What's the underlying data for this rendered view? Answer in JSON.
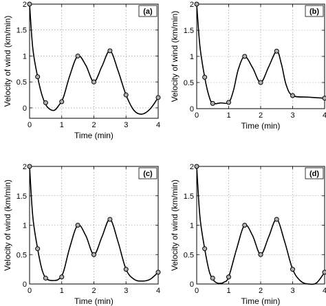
{
  "chart_data": [
    {
      "type": "line",
      "panel_label": "(a)",
      "xlabel": "Time (min)",
      "ylabel": "Velocity of wind (km/min)",
      "xlim": [
        0,
        4
      ],
      "ylim": [
        -0.2,
        2
      ],
      "grid": true,
      "xticks": [
        0,
        1,
        2,
        3,
        4
      ],
      "xtick_labels": [
        "0",
        "1",
        "2",
        "3",
        "4"
      ],
      "yticks": [
        0,
        0.5,
        1,
        1.5,
        2
      ],
      "ytick_labels": [
        "0",
        "0.5",
        "1",
        "1.5",
        "2"
      ],
      "points": {
        "x": [
          0,
          0.25,
          0.5,
          1,
          1.5,
          2,
          2.5,
          3,
          4
        ],
        "y": [
          2,
          0.6,
          0.1,
          0.12,
          1,
          0.5,
          1.1,
          0.25,
          0.2
        ]
      },
      "curve": {
        "x": [
          0,
          0.1,
          0.25,
          0.4,
          0.55,
          0.75,
          0.9,
          1.05,
          1.25,
          1.5,
          1.75,
          2,
          2.25,
          2.5,
          2.75,
          3,
          3.25,
          3.5,
          3.75,
          4
        ],
        "y": [
          2,
          1.15,
          0.6,
          0.22,
          0.02,
          -0.05,
          0.04,
          0.2,
          0.62,
          1,
          0.82,
          0.5,
          0.8,
          1.1,
          0.72,
          0.25,
          -0.05,
          -0.12,
          -0.02,
          0.2
        ]
      }
    },
    {
      "type": "line",
      "panel_label": "(b)",
      "xlabel": "Time (min)",
      "ylabel": "Velocity of wind (km/min)",
      "xlim": [
        0,
        4
      ],
      "ylim": [
        0,
        2
      ],
      "grid": true,
      "xticks": [
        0,
        1,
        2,
        3,
        4
      ],
      "xtick_labels": [
        "0",
        "1",
        "2",
        "3",
        "4"
      ],
      "yticks": [
        0,
        0.5,
        1,
        1.5,
        2
      ],
      "ytick_labels": [
        "0",
        "0.5",
        "1",
        "1.5",
        "2"
      ],
      "points": {
        "x": [
          0,
          0.25,
          0.5,
          1,
          1.5,
          2,
          2.5,
          3,
          4
        ],
        "y": [
          2,
          0.6,
          0.1,
          0.12,
          1,
          0.5,
          1.1,
          0.25,
          0.2
        ]
      },
      "curve": {
        "x": [
          0,
          0.1,
          0.25,
          0.38,
          0.5,
          0.75,
          1,
          1.15,
          1.3,
          1.5,
          1.75,
          2,
          2.25,
          2.5,
          2.65,
          2.8,
          3,
          3.5,
          4
        ],
        "y": [
          2,
          1.2,
          0.6,
          0.25,
          0.1,
          0.11,
          0.12,
          0.35,
          0.75,
          1,
          0.78,
          0.5,
          0.8,
          1.1,
          0.85,
          0.45,
          0.25,
          0.22,
          0.2
        ]
      }
    },
    {
      "type": "line",
      "panel_label": "(c)",
      "xlabel": "Time (min)",
      "ylabel": "Velocity of wind (km/min)",
      "xlim": [
        0,
        4
      ],
      "ylim": [
        0,
        2
      ],
      "grid": true,
      "xticks": [
        0,
        1,
        2,
        3,
        4
      ],
      "xtick_labels": [
        "0",
        "1",
        "2",
        "3",
        "4"
      ],
      "yticks": [
        0,
        0.5,
        1,
        1.5,
        2
      ],
      "ytick_labels": [
        "0",
        "0.5",
        "1",
        "1.5",
        "2"
      ],
      "points": {
        "x": [
          0,
          0.25,
          0.5,
          1,
          1.5,
          2,
          2.5,
          3,
          4
        ],
        "y": [
          2,
          0.6,
          0.1,
          0.12,
          1,
          0.5,
          1.1,
          0.25,
          0.2
        ]
      },
      "curve": {
        "x": [
          0,
          0.1,
          0.25,
          0.4,
          0.55,
          0.75,
          0.9,
          1.05,
          1.25,
          1.5,
          1.75,
          2,
          2.25,
          2.5,
          2.75,
          3,
          3.25,
          3.5,
          3.75,
          4
        ],
        "y": [
          2,
          1.15,
          0.6,
          0.22,
          0.08,
          0.06,
          0.08,
          0.2,
          0.62,
          1,
          0.82,
          0.5,
          0.8,
          1.1,
          0.72,
          0.25,
          0.08,
          0.05,
          0.08,
          0.2
        ]
      }
    },
    {
      "type": "line",
      "panel_label": "(d)",
      "xlabel": "Time (min)",
      "ylabel": "Velocity of wind (km/min)",
      "xlim": [
        0,
        4
      ],
      "ylim": [
        0,
        2
      ],
      "grid": true,
      "xticks": [
        0,
        1,
        2,
        3,
        4
      ],
      "xtick_labels": [
        "0",
        "1",
        "2",
        "3",
        "4"
      ],
      "yticks": [
        0,
        0.5,
        1,
        1.5,
        2
      ],
      "ytick_labels": [
        "0",
        "0.5",
        "1",
        "1.5",
        "2"
      ],
      "points": {
        "x": [
          0,
          0.25,
          0.5,
          1,
          1.5,
          2,
          2.5,
          3,
          4
        ],
        "y": [
          2,
          0.6,
          0.1,
          0.12,
          1,
          0.5,
          1.1,
          0.25,
          0.2
        ]
      },
      "curve": {
        "x": [
          0,
          0.1,
          0.25,
          0.4,
          0.55,
          0.7,
          0.85,
          1,
          1.25,
          1.5,
          1.75,
          2,
          2.25,
          2.5,
          2.75,
          3,
          3.25,
          3.5,
          3.75,
          4
        ],
        "y": [
          2,
          1.15,
          0.6,
          0.2,
          0.05,
          0.01,
          0.03,
          0.12,
          0.6,
          1,
          0.82,
          0.5,
          0.8,
          1.1,
          0.72,
          0.25,
          0.05,
          0.0,
          0.02,
          0.2
        ]
      }
    }
  ]
}
